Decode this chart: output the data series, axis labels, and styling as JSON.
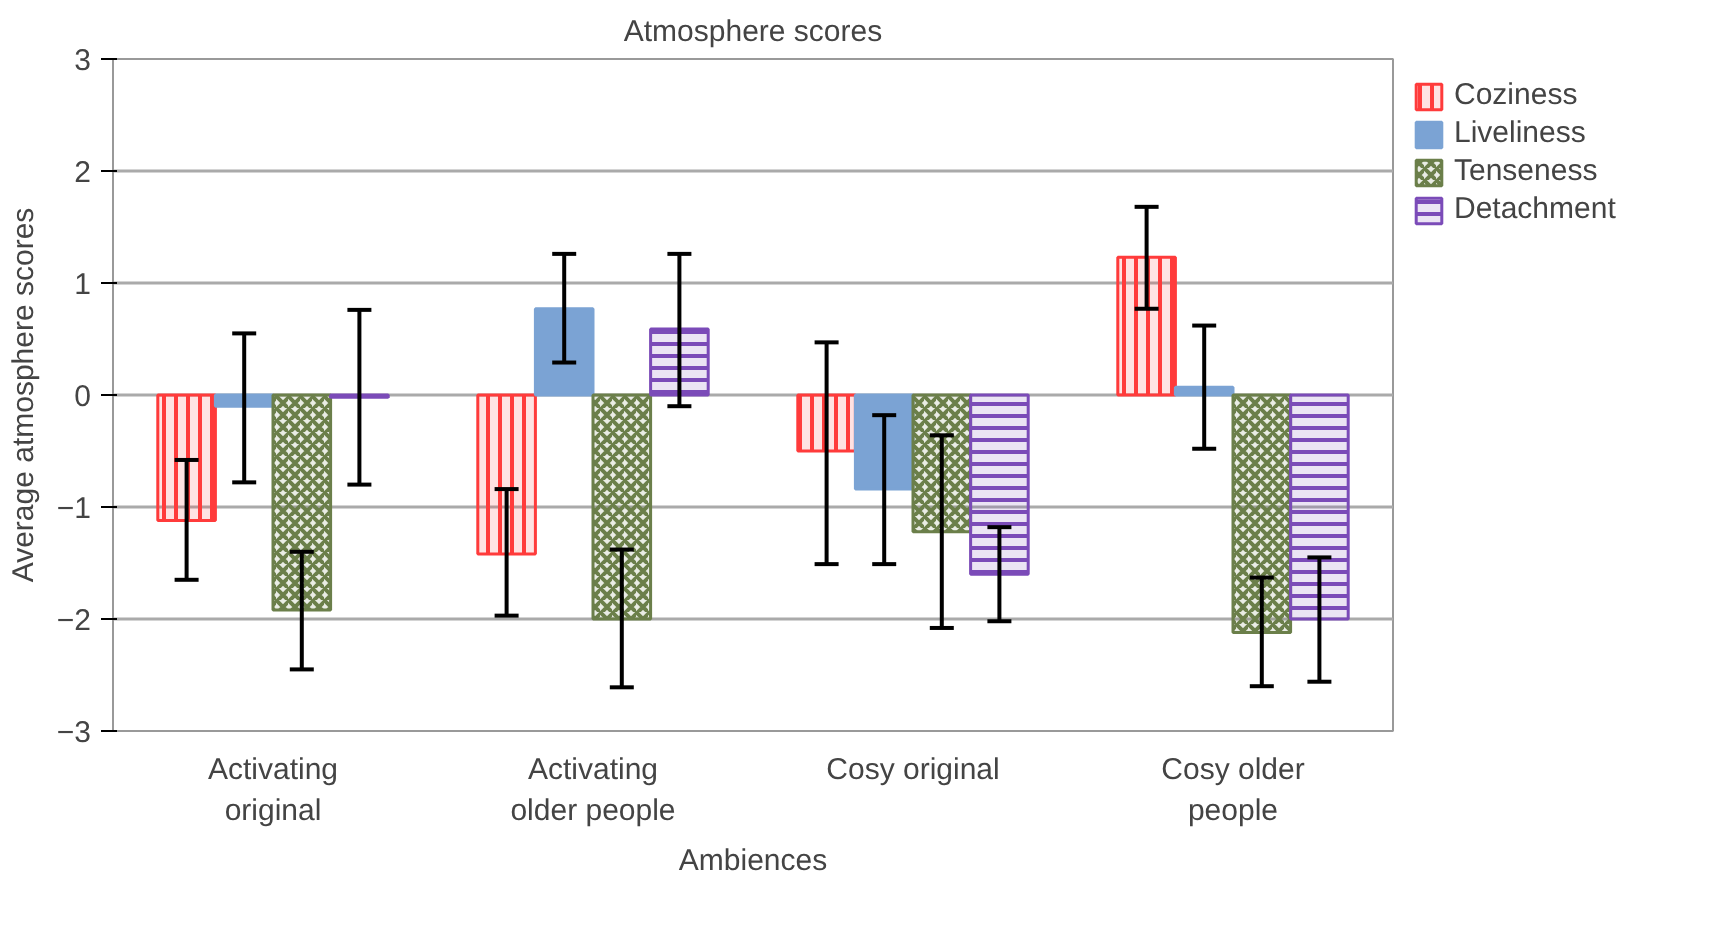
{
  "chart_data": {
    "type": "bar",
    "title": "Atmosphere scores",
    "xlabel": "Ambiences",
    "ylabel": "Average atmosphere scores",
    "categories": [
      "Activating\noriginal",
      "Activating\nolder people",
      "Cosy original",
      "Cosy older\npeople"
    ],
    "series": [
      {
        "name": "Coziness",
        "color": "#ff3b3b",
        "values": [
          -1.12,
          -1.42,
          -0.5,
          1.23
        ],
        "errors": [
          [
            -1.65,
            -0.58
          ],
          [
            -1.97,
            -0.84
          ],
          [
            -1.51,
            0.47
          ],
          [
            0.77,
            1.68
          ]
        ]
      },
      {
        "name": "Liveliness",
        "color": "#7ba3d4",
        "values": [
          -0.1,
          0.77,
          -0.84,
          0.07
        ],
        "errors": [
          [
            -0.78,
            0.55
          ],
          [
            0.29,
            1.26
          ],
          [
            -1.51,
            -0.18
          ],
          [
            -0.48,
            0.62
          ]
        ]
      },
      {
        "name": "Tenseness",
        "color": "#6b7f4a",
        "values": [
          -1.92,
          -2.0,
          -1.22,
          -2.12
        ],
        "errors": [
          [
            -2.45,
            -1.4
          ],
          [
            -2.61,
            -1.38
          ],
          [
            -2.08,
            -0.36
          ],
          [
            -2.6,
            -1.63
          ]
        ]
      },
      {
        "name": "Detachment",
        "color": "#7b4bb8",
        "values": [
          -0.02,
          0.59,
          -1.6,
          -2.0
        ],
        "errors": [
          [
            -0.8,
            0.76
          ],
          [
            -0.1,
            1.26
          ],
          [
            -2.02,
            -1.18
          ],
          [
            -2.56,
            -1.45
          ]
        ]
      }
    ],
    "ylim": [
      -3,
      3
    ],
    "yticks": [
      {
        "value": -3,
        "label": "−3"
      },
      {
        "value": -2,
        "label": "−2"
      },
      {
        "value": -1,
        "label": "−1"
      },
      0,
      1,
      2,
      3
    ],
    "grid": "y",
    "legend": "top right"
  }
}
